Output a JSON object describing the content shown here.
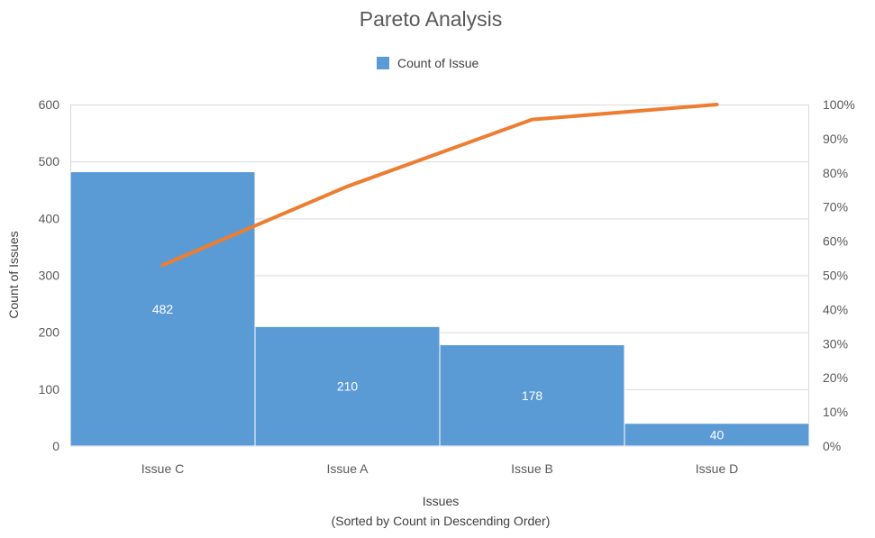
{
  "chart_data": {
    "type": "bar",
    "title": "Pareto Analysis",
    "categories": [
      "Issue C",
      "Issue A",
      "Issue B",
      "Issue D"
    ],
    "series": [
      {
        "name": "Count of Issue",
        "values": [
          482,
          210,
          178,
          40
        ],
        "color": "#5b9bd5"
      }
    ],
    "cumulative_percent": [
      52.97,
      76.04,
      95.6,
      100.0
    ],
    "cumulative_color": "#ed7d31",
    "data_labels": [
      "482",
      "210",
      "178",
      "40"
    ],
    "ylabel": "Count of Issues",
    "xlabel": "Issues",
    "xlabel_sub": "(Sorted by Count in Descending Order)",
    "ylim": [
      0,
      600
    ],
    "y_ticks": [
      "0",
      "100",
      "200",
      "300",
      "400",
      "500",
      "600"
    ],
    "y2lim": [
      0,
      100
    ],
    "y2_ticks": [
      "0%",
      "10%",
      "20%",
      "30%",
      "40%",
      "50%",
      "60%",
      "70%",
      "80%",
      "90%",
      "100%"
    ],
    "legend_position": "top",
    "grid": true
  }
}
